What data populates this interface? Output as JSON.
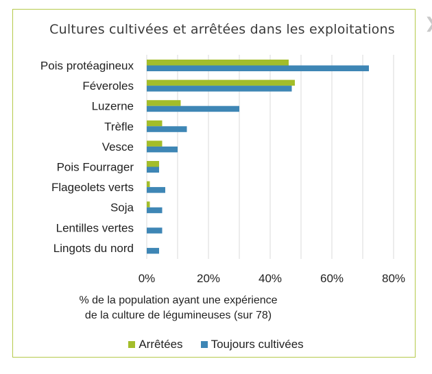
{
  "title": "Cultures cultivées et arrêtées dans les exploitations",
  "decor_glyph": "❯",
  "xlabel_line1": "% de la population ayant une expérience",
  "xlabel_line2": "de la culture de légumineuses (sur 78)",
  "colors": {
    "arretees": "#a3bd2a",
    "cultivees": "#3e86b5",
    "frame": "#b5c94a",
    "grid": "#d9d9d9"
  },
  "chart_data": {
    "type": "bar",
    "orientation": "horizontal",
    "title": "Cultures cultivées et arrêtées dans les exploitations",
    "xlabel": "% de la population ayant une expérience de la culture de légumineuses (sur 78)",
    "ylabel": "",
    "xlim": [
      0,
      80
    ],
    "x_ticks": [
      "0%",
      "20%",
      "40%",
      "60%",
      "80%"
    ],
    "x_tick_values": [
      0,
      20,
      40,
      60,
      80
    ],
    "grid": "vertical",
    "legend_position": "bottom",
    "categories": [
      "Pois protéagineux",
      "Féveroles",
      "Luzerne",
      "Trèfle",
      "Vesce",
      "Pois Fourrager",
      "Flageolets verts",
      "Soja",
      "Lentilles vertes",
      "Lingots du nord"
    ],
    "series": [
      {
        "name": "Arrêtées",
        "values": [
          46,
          48,
          11,
          5,
          5,
          4,
          1,
          1,
          0,
          0
        ]
      },
      {
        "name": "Toujours cultivées",
        "values": [
          72,
          47,
          30,
          13,
          10,
          4,
          6,
          5,
          5,
          4
        ]
      }
    ]
  }
}
